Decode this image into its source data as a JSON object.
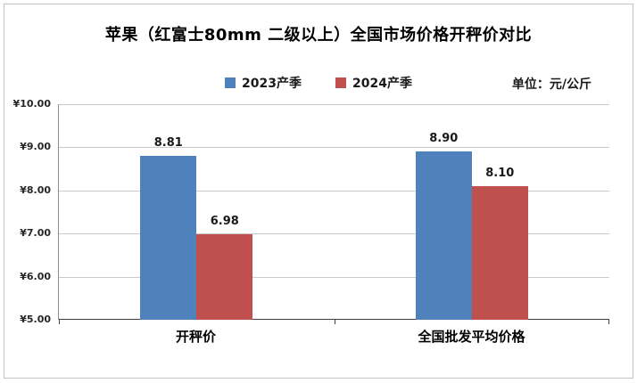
{
  "chart_data": {
    "type": "bar",
    "title": "苹果（红富士80mm 二级以上）全国市场价格开秤价对比",
    "unit_label": "单位：元/公斤",
    "categories": [
      "开秤价",
      "全国批发平均价格"
    ],
    "series": [
      {
        "name": "2023产季",
        "color": "#4F81BD",
        "values": [
          8.81,
          8.9
        ]
      },
      {
        "name": "2024产季",
        "color": "#C0504D",
        "values": [
          6.98,
          8.1
        ]
      }
    ],
    "data_labels": [
      [
        "8.81",
        "8.90"
      ],
      [
        "6.98",
        "8.10"
      ]
    ],
    "ylim": [
      5,
      10
    ],
    "ytick_step": 1,
    "ytick_labels": [
      "¥5.00",
      "¥6.00",
      "¥7.00",
      "¥8.00",
      "¥9.00",
      "¥10.00"
    ],
    "grid": true,
    "legend_position": "top"
  }
}
